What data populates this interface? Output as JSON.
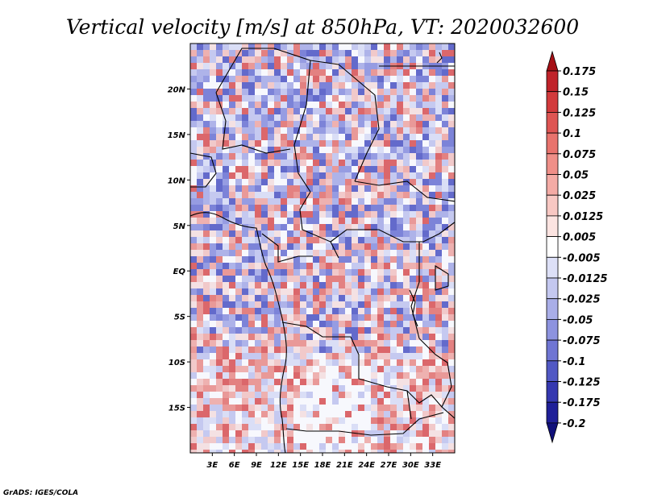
{
  "title": "Vertical velocity [m/s] at 850hPa, VT: 2020032600",
  "credit": "GrADS: IGES/COLA",
  "map": {
    "lon_range": [
      0,
      36
    ],
    "lat_range": [
      -20,
      25
    ],
    "x_tick_labels": [
      "3E",
      "6E",
      "9E",
      "12E",
      "15E",
      "18E",
      "21E",
      "24E",
      "27E",
      "30E",
      "33E"
    ],
    "x_tick_values": [
      3,
      6,
      9,
      12,
      15,
      18,
      21,
      24,
      27,
      30,
      33
    ],
    "y_tick_labels": [
      "20N",
      "15N",
      "10N",
      "5N",
      "EQ",
      "5S",
      "10S",
      "15S"
    ],
    "y_tick_values": [
      20,
      15,
      10,
      5,
      0,
      -5,
      -10,
      -15
    ]
  },
  "colorbar": {
    "labels": [
      "0.175",
      "0.15",
      "0.125",
      "0.1",
      "0.075",
      "0.05",
      "0.025",
      "0.0125",
      "0.005",
      "-0.005",
      "-0.0125",
      "-0.025",
      "-0.05",
      "-0.075",
      "-0.1",
      "-0.125",
      "-0.175",
      "-0.2"
    ],
    "colors": [
      "#a50f15",
      "#c0232a",
      "#d23a3c",
      "#de5553",
      "#e8736d",
      "#ef8f88",
      "#f4aba5",
      "#f8c8c3",
      "#fce4e1",
      "#ffffff",
      "#dde0f7",
      "#c4c8f0",
      "#a9aee8",
      "#8d93df",
      "#6f75d3",
      "#5158c4",
      "#3538b0",
      "#1f1f98",
      "#10107a"
    ]
  }
}
